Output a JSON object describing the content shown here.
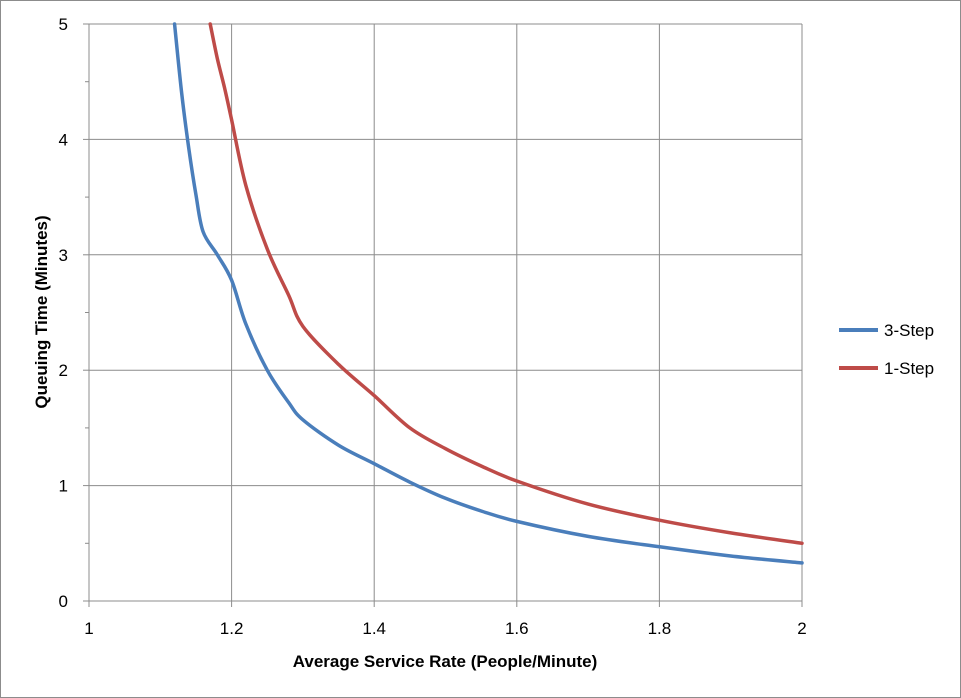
{
  "chart_data": {
    "type": "line",
    "title": "",
    "xlabel": "Average Service Rate (People/Minute)",
    "ylabel": "Queuing Time (Minutes)",
    "xlim": [
      1,
      2
    ],
    "ylim": [
      0,
      5
    ],
    "xticks": [
      1,
      1.2,
      1.4,
      1.6,
      1.8,
      2
    ],
    "xtick_labels": [
      "1",
      "1.2",
      "1.4",
      "1.6",
      "1.8",
      "2"
    ],
    "yticks": [
      0,
      1,
      2,
      3,
      4,
      5
    ],
    "ytick_labels": [
      "0",
      "1",
      "2",
      "3",
      "4",
      "5"
    ],
    "y_minor_step": 0.5,
    "grid": true,
    "legend_position": "right",
    "series": [
      {
        "name": "3-Step",
        "color": "#4a7ebb",
        "x": [
          1.12,
          1.13,
          1.14,
          1.15,
          1.16,
          1.18,
          1.2,
          1.22,
          1.25,
          1.28,
          1.3,
          1.35,
          1.4,
          1.45,
          1.5,
          1.55,
          1.6,
          1.7,
          1.8,
          1.9,
          2.0
        ],
        "y": [
          5.0,
          4.4,
          3.92,
          3.52,
          3.2,
          3.0,
          2.78,
          2.4,
          2.0,
          1.72,
          1.57,
          1.35,
          1.19,
          1.03,
          0.89,
          0.78,
          0.69,
          0.56,
          0.47,
          0.39,
          0.33
        ]
      },
      {
        "name": "1-Step",
        "color": "#be4b48",
        "x": [
          1.17,
          1.18,
          1.19,
          1.2,
          1.22,
          1.25,
          1.28,
          1.3,
          1.35,
          1.4,
          1.45,
          1.5,
          1.55,
          1.6,
          1.7,
          1.8,
          1.9,
          2.0
        ],
        "y": [
          5.0,
          4.7,
          4.45,
          4.17,
          3.6,
          3.05,
          2.65,
          2.38,
          2.05,
          1.78,
          1.5,
          1.32,
          1.17,
          1.04,
          0.84,
          0.7,
          0.59,
          0.5
        ]
      }
    ]
  }
}
